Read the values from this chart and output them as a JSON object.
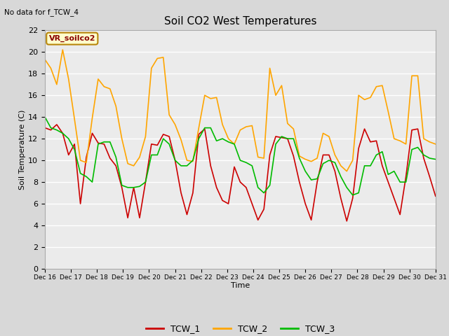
{
  "title": "Soil CO2 West Temperatures",
  "no_data_label": "No data for f_TCW_4",
  "annotation_label": "VR_soilco2",
  "xlabel": "Time",
  "ylabel": "Soil Temperature (C)",
  "ylim": [
    0,
    22
  ],
  "yticks": [
    0,
    2,
    4,
    6,
    8,
    10,
    12,
    14,
    16,
    18,
    20,
    22
  ],
  "fig_bg_color": "#d8d8d8",
  "plot_bg_color": "#ebebeb",
  "line_colors": {
    "TCW_1": "#cc0000",
    "TCW_2": "#ffa500",
    "TCW_3": "#00bb00"
  },
  "line_width": 1.2,
  "x_tick_labels": [
    "Dec 16",
    "Dec 17",
    "Dec 18",
    "Dec 19",
    "Dec 20",
    "Dec 21",
    "Dec 22",
    "Dec 23",
    "Dec 24",
    "Dec 25",
    "Dec 26",
    "Dec 27",
    "Dec 28",
    "Dec 29",
    "Dec 30",
    "Dec 31"
  ],
  "TCW_1": [
    13.0,
    12.8,
    13.3,
    12.5,
    10.5,
    11.5,
    6.0,
    10.3,
    12.5,
    11.6,
    11.5,
    10.2,
    9.5,
    7.5,
    4.7,
    7.5,
    4.7,
    8.0,
    11.5,
    11.4,
    12.4,
    12.2,
    10.0,
    7.0,
    5.0,
    7.0,
    12.4,
    12.9,
    9.5,
    7.5,
    6.3,
    6.0,
    9.4,
    8.0,
    7.5,
    6.0,
    4.5,
    5.5,
    10.5,
    12.2,
    12.1,
    12.0,
    10.4,
    8.0,
    6.0,
    4.5,
    8.0,
    10.5,
    10.5,
    9.0,
    6.5,
    4.4,
    6.5,
    11.1,
    12.9,
    11.7,
    11.8,
    9.5,
    8.0,
    6.5,
    5.0,
    8.5,
    12.8,
    12.9,
    10.2,
    8.5,
    6.7
  ],
  "TCW_2": [
    19.3,
    18.5,
    17.0,
    20.2,
    17.5,
    13.8,
    10.0,
    9.8,
    13.9,
    17.5,
    16.8,
    16.6,
    15.0,
    12.0,
    9.7,
    9.5,
    10.3,
    12.2,
    18.5,
    19.4,
    19.5,
    14.2,
    13.3,
    11.9,
    10.0,
    9.9,
    13.0,
    16.0,
    15.7,
    15.8,
    13.3,
    12.0,
    11.5,
    12.8,
    13.1,
    13.2,
    10.3,
    10.2,
    18.5,
    16.0,
    16.9,
    13.4,
    12.9,
    10.4,
    10.1,
    9.9,
    10.2,
    12.5,
    12.2,
    10.5,
    9.5,
    9.0,
    10.0,
    16.0,
    15.6,
    15.8,
    16.8,
    16.9,
    14.5,
    12.0,
    11.8,
    11.5,
    17.8,
    17.8,
    12.0,
    11.7,
    11.5
  ],
  "TCW_3": [
    14.0,
    13.0,
    12.8,
    12.5,
    12.0,
    11.0,
    8.8,
    8.5,
    8.0,
    11.5,
    11.7,
    11.7,
    10.3,
    7.7,
    7.5,
    7.5,
    7.6,
    8.0,
    10.5,
    10.5,
    12.0,
    11.5,
    10.0,
    9.5,
    9.5,
    10.0,
    12.0,
    13.0,
    13.0,
    11.8,
    12.0,
    11.7,
    11.5,
    10.0,
    9.8,
    9.5,
    7.5,
    7.0,
    7.7,
    11.5,
    12.2,
    12.0,
    12.0,
    10.2,
    9.0,
    8.2,
    8.3,
    9.7,
    10.0,
    9.8,
    8.5,
    7.5,
    6.8,
    7.0,
    9.5,
    9.5,
    10.5,
    10.8,
    8.7,
    9.0,
    8.0,
    8.0,
    11.0,
    11.2,
    10.5,
    10.2,
    10.1
  ]
}
